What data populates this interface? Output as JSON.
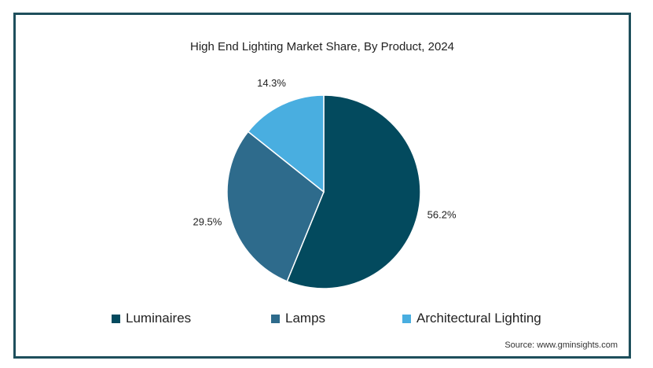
{
  "chart_data": {
    "type": "pie",
    "title": "High End Lighting Market Share, By Product, 2024",
    "categories": [
      "Luminaires",
      "Lamps",
      "Architectural Lighting"
    ],
    "values": [
      56.2,
      29.5,
      14.3
    ],
    "labels": [
      "56.2%",
      "29.5%",
      "14.3%"
    ],
    "colors": [
      "#034a5e",
      "#2e6b8c",
      "#49aee0"
    ],
    "legend_position": "bottom",
    "start_angle_deg": 0,
    "direction": "clockwise"
  },
  "source": "Source: www.gminsights.com"
}
